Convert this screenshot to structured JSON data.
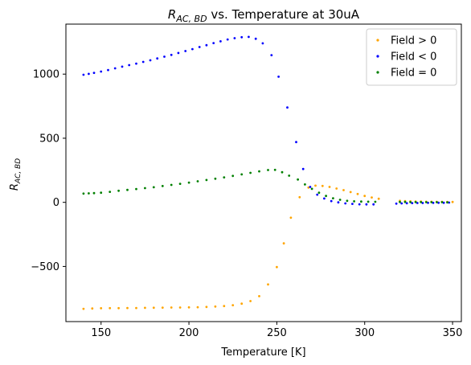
{
  "chart_data": {
    "type": "scatter",
    "title_main": "R",
    "title_sub": "AC, BD",
    "title_rest": " vs. Temperature at 30uA",
    "xlabel": "Temperature [K]",
    "ylabel_main": "R",
    "ylabel_sub": "AC, BD",
    "xlim": [
      130,
      355
    ],
    "ylim": [
      -930,
      1390
    ],
    "xticks": [
      150,
      200,
      250,
      300,
      350
    ],
    "yticks": [
      -500,
      0,
      500,
      1000
    ],
    "xtick_labels": [
      "150",
      "200",
      "250",
      "300",
      "350"
    ],
    "ytick_labels": [
      "−500",
      "0",
      "500",
      "1000"
    ],
    "grid": false,
    "legend_position": "top-right",
    "series": [
      {
        "name": "Field > 0",
        "color": "#ffa500",
        "points": [
          [
            140,
            -830
          ],
          [
            145,
            -828
          ],
          [
            150,
            -826
          ],
          [
            155,
            -825
          ],
          [
            160,
            -825
          ],
          [
            165,
            -824
          ],
          [
            170,
            -824
          ],
          [
            175,
            -823
          ],
          [
            180,
            -822
          ],
          [
            185,
            -821
          ],
          [
            190,
            -820
          ],
          [
            195,
            -820
          ],
          [
            200,
            -819
          ],
          [
            205,
            -818
          ],
          [
            210,
            -816
          ],
          [
            215,
            -813
          ],
          [
            220,
            -809
          ],
          [
            225,
            -802
          ],
          [
            230,
            -790
          ],
          [
            235,
            -770
          ],
          [
            240,
            -732
          ],
          [
            245,
            -640
          ],
          [
            250,
            -505
          ],
          [
            254,
            -320
          ],
          [
            258,
            -120
          ],
          [
            263,
            40
          ],
          [
            268,
            115
          ],
          [
            272,
            130
          ],
          [
            276,
            128
          ],
          [
            280,
            120
          ],
          [
            284,
            108
          ],
          [
            288,
            95
          ],
          [
            292,
            80
          ],
          [
            296,
            65
          ],
          [
            300,
            50
          ],
          [
            304,
            38
          ],
          [
            308,
            28
          ],
          [
            320,
            12
          ],
          [
            323,
            10
          ],
          [
            326,
            8
          ],
          [
            329,
            7
          ],
          [
            332,
            6
          ],
          [
            335,
            5
          ],
          [
            338,
            5
          ],
          [
            341,
            4
          ],
          [
            344,
            4
          ],
          [
            347,
            3
          ],
          [
            350,
            3
          ]
        ]
      },
      {
        "name": "Field < 0",
        "color": "#0000ff",
        "points": [
          [
            140,
            995
          ],
          [
            143,
            1002
          ],
          [
            146,
            1010
          ],
          [
            150,
            1020
          ],
          [
            154,
            1032
          ],
          [
            158,
            1045
          ],
          [
            162,
            1058
          ],
          [
            166,
            1070
          ],
          [
            170,
            1082
          ],
          [
            174,
            1095
          ],
          [
            178,
            1108
          ],
          [
            182,
            1122
          ],
          [
            186,
            1136
          ],
          [
            190,
            1150
          ],
          [
            194,
            1165
          ],
          [
            198,
            1180
          ],
          [
            202,
            1195
          ],
          [
            206,
            1211
          ],
          [
            210,
            1226
          ],
          [
            214,
            1242
          ],
          [
            218,
            1256
          ],
          [
            222,
            1270
          ],
          [
            226,
            1280
          ],
          [
            230,
            1288
          ],
          [
            234,
            1290
          ],
          [
            238,
            1276
          ],
          [
            242,
            1240
          ],
          [
            247,
            1148
          ],
          [
            251,
            980
          ],
          [
            256,
            740
          ],
          [
            261,
            470
          ],
          [
            265,
            260
          ],
          [
            269,
            120
          ],
          [
            273,
            60
          ],
          [
            277,
            30
          ],
          [
            281,
            10
          ],
          [
            285,
            0
          ],
          [
            289,
            -8
          ],
          [
            293,
            -12
          ],
          [
            297,
            -15
          ],
          [
            301,
            -16
          ],
          [
            305,
            -16
          ],
          [
            318,
            -10
          ],
          [
            321,
            -8
          ],
          [
            324,
            -7
          ],
          [
            327,
            -6
          ],
          [
            330,
            -5
          ],
          [
            333,
            -5
          ],
          [
            336,
            -4
          ],
          [
            339,
            -4
          ],
          [
            342,
            -3
          ],
          [
            345,
            -3
          ],
          [
            348,
            -2
          ]
        ]
      },
      {
        "name": "Field = 0",
        "color": "#008000",
        "points": [
          [
            140,
            68
          ],
          [
            143,
            70
          ],
          [
            146,
            72
          ],
          [
            150,
            75
          ],
          [
            155,
            82
          ],
          [
            160,
            90
          ],
          [
            165,
            97
          ],
          [
            170,
            104
          ],
          [
            175,
            111
          ],
          [
            180,
            118
          ],
          [
            185,
            127
          ],
          [
            190,
            136
          ],
          [
            195,
            145
          ],
          [
            200,
            154
          ],
          [
            205,
            164
          ],
          [
            210,
            174
          ],
          [
            215,
            184
          ],
          [
            220,
            195
          ],
          [
            225,
            206
          ],
          [
            230,
            218
          ],
          [
            235,
            230
          ],
          [
            240,
            242
          ],
          [
            245,
            252
          ],
          [
            249,
            253
          ],
          [
            253,
            235
          ],
          [
            257,
            208
          ],
          [
            262,
            178
          ],
          [
            266,
            140
          ],
          [
            270,
            105
          ],
          [
            274,
            75
          ],
          [
            278,
            50
          ],
          [
            282,
            32
          ],
          [
            286,
            20
          ],
          [
            290,
            12
          ],
          [
            294,
            8
          ],
          [
            298,
            6
          ],
          [
            302,
            5
          ],
          [
            306,
            4
          ],
          [
            320,
            3
          ],
          [
            323,
            3
          ],
          [
            326,
            2
          ],
          [
            329,
            2
          ],
          [
            332,
            2
          ],
          [
            335,
            1
          ],
          [
            338,
            1
          ],
          [
            341,
            1
          ],
          [
            344,
            1
          ],
          [
            347,
            0
          ]
        ]
      }
    ]
  }
}
